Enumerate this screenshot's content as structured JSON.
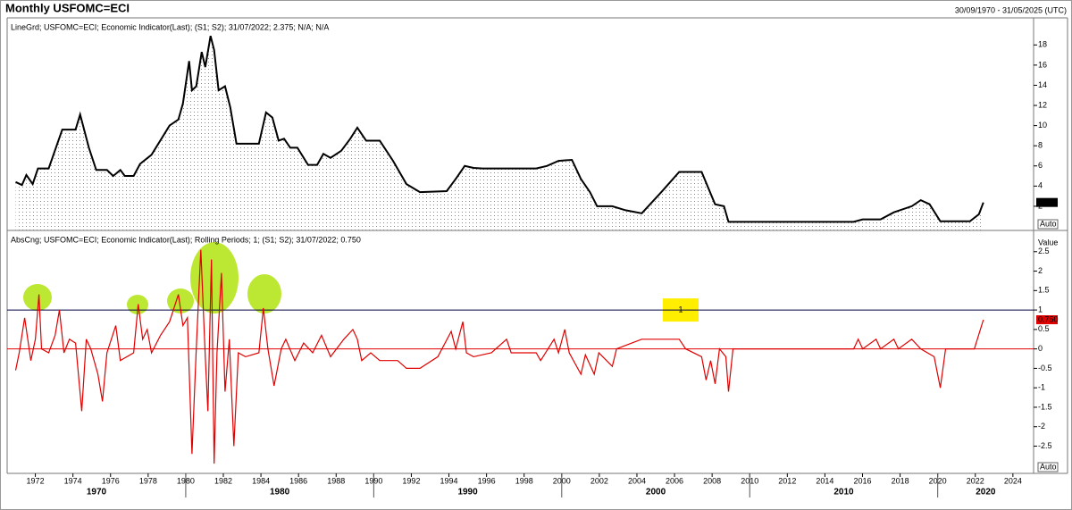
{
  "header": {
    "title": "Monthly USFOMC=ECI",
    "date_range": "30/09/1970 - 31/05/2025 (UTC)"
  },
  "chart_data": [
    {
      "type": "line",
      "legend": "LineGrd; USFOMC=ECI; Economic Indicator(Last); (S1; S2); 31/07/2022; 2.375; N/A; N/A",
      "fill": true,
      "button": "Auto",
      "xlim": [
        1970.5,
        2025.1
      ],
      "ylim": [
        -0.4,
        19.8
      ],
      "yticks": [
        2,
        4,
        6,
        8,
        10,
        12,
        14,
        16,
        18
      ],
      "series": [
        {
          "name": "USFOMC=ECI",
          "color": "#000000",
          "end_label": "2.375",
          "x": [
            1970.95,
            1971.29,
            1971.52,
            1971.86,
            1972.14,
            1972.71,
            1973.43,
            1974.14,
            1974.38,
            1974.85,
            1975.24,
            1975.81,
            1976.14,
            1976.52,
            1976.76,
            1977.23,
            1977.57,
            1978.18,
            1979.14,
            1979.61,
            1979.85,
            1980.18,
            1980.33,
            1980.56,
            1980.85,
            1981.04,
            1981.32,
            1981.51,
            1981.75,
            1982.09,
            1982.37,
            1982.7,
            1983.89,
            1984.27,
            1984.61,
            1984.94,
            1985.23,
            1985.56,
            1985.94,
            1986.51,
            1986.99,
            1987.32,
            1987.7,
            1988.27,
            1988.75,
            1989.13,
            1989.6,
            1990.32,
            1991.03,
            1991.74,
            1992.46,
            1993.88,
            1994.36,
            1994.84,
            1995.31,
            1995.79,
            1998.64,
            1999.21,
            1999.83,
            2000.54,
            2001.02,
            2001.5,
            2001.88,
            2002.69,
            2003.4,
            2004.26,
            2005.3,
            2006.25,
            2007.44,
            2008.16,
            2008.63,
            2008.87,
            2015.53,
            2016.01,
            2016.96,
            2017.67,
            2018.62,
            2019.1,
            2019.57,
            2020.14,
            2021.71,
            2022.19,
            2022.43
          ],
          "values": [
            4.4,
            4.1,
            5.1,
            4.2,
            5.75,
            5.75,
            9.6,
            9.6,
            11.1,
            7.8,
            5.6,
            5.6,
            5.0,
            5.6,
            5.0,
            5.0,
            6.2,
            7.1,
            10.0,
            10.6,
            12.2,
            16.4,
            13.5,
            13.9,
            17.3,
            15.8,
            18.9,
            17.5,
            13.5,
            13.9,
            11.8,
            8.2,
            8.2,
            11.3,
            10.8,
            8.5,
            8.7,
            7.8,
            7.8,
            6.1,
            6.1,
            7.2,
            6.8,
            7.5,
            8.7,
            9.8,
            8.5,
            8.5,
            6.5,
            4.2,
            3.4,
            3.5,
            4.7,
            6.0,
            5.8,
            5.75,
            5.75,
            6.0,
            6.5,
            6.6,
            4.7,
            3.4,
            2.0,
            2.0,
            1.6,
            1.3,
            3.4,
            5.4,
            5.4,
            2.2,
            2.0,
            0.45,
            0.45,
            0.7,
            0.7,
            1.4,
            2.0,
            2.6,
            2.2,
            0.5,
            0.5,
            1.2,
            2.375
          ]
        }
      ]
    },
    {
      "type": "line",
      "legend": "AbsCng; USFOMC=ECI; Economic Indicator(Last); Rolling Periods; 1; (S1; S2); 31/07/2022; 0.750",
      "axis_title": "Value",
      "button": "Auto",
      "xlim": [
        1970.5,
        2025.1
      ],
      "ylim": [
        -3.2,
        3.0
      ],
      "yticks": [
        2.5,
        2,
        1.5,
        1,
        0.5,
        0,
        -0.5,
        -1,
        -1.5,
        -2,
        -2.5
      ],
      "xticks": [
        1972,
        1974,
        1976,
        1978,
        1980,
        1982,
        1984,
        1986,
        1988,
        1990,
        1992,
        1994,
        1996,
        1998,
        2000,
        2002,
        2004,
        2006,
        2008,
        2010,
        2012,
        2014,
        2016,
        2018,
        2020,
        2022,
        2024
      ],
      "decade_ticks": [
        1970,
        1980,
        1990,
        2000,
        2010,
        2020
      ],
      "reference_line": {
        "value": 1,
        "label": "1"
      },
      "series": [
        {
          "name": "AbsCng",
          "color": "#e00000",
          "end_label": "0.750",
          "x": [
            1970.95,
            1971.14,
            1971.43,
            1971.76,
            1972.0,
            1972.19,
            1972.33,
            1972.71,
            1973.05,
            1973.28,
            1973.52,
            1973.81,
            1974.14,
            1974.47,
            1974.71,
            1974.95,
            1975.33,
            1975.57,
            1975.81,
            1976.28,
            1976.52,
            1977.23,
            1977.47,
            1977.71,
            1977.95,
            1978.18,
            1978.66,
            1979.14,
            1979.61,
            1979.85,
            1980.09,
            1980.33,
            1980.56,
            1980.8,
            1981.04,
            1981.18,
            1981.37,
            1981.51,
            1981.66,
            1981.9,
            1982.09,
            1982.32,
            1982.56,
            1982.8,
            1983.18,
            1983.89,
            1984.13,
            1984.37,
            1984.7,
            1985.08,
            1985.32,
            1985.8,
            1986.27,
            1986.75,
            1987.22,
            1987.7,
            1988.41,
            1988.89,
            1989.13,
            1989.36,
            1989.84,
            1990.32,
            1991.27,
            1991.74,
            1992.46,
            1993.41,
            1994.12,
            1994.36,
            1994.74,
            1994.93,
            1995.31,
            1996.26,
            1997.07,
            1997.31,
            1998.64,
            1998.88,
            1999.59,
            1999.83,
            2000.16,
            2000.4,
            2001.02,
            2001.26,
            2001.73,
            2001.97,
            2002.69,
            2002.92,
            2004.26,
            2006.25,
            2006.59,
            2007.44,
            2007.68,
            2007.92,
            2008.16,
            2008.39,
            2008.73,
            2008.87,
            2009.11,
            2015.53,
            2015.77,
            2016.01,
            2016.72,
            2016.96,
            2017.67,
            2017.91,
            2018.62,
            2019.1,
            2019.81,
            2020.14,
            2020.42,
            2021.95,
            2022.43
          ],
          "values": [
            -0.55,
            -0.1,
            0.8,
            -0.3,
            0.25,
            1.4,
            0.0,
            -0.1,
            0.35,
            1.0,
            -0.1,
            0.25,
            0.15,
            -1.6,
            0.25,
            0.0,
            -0.65,
            -1.35,
            -0.1,
            0.6,
            -0.3,
            -0.1,
            1.15,
            0.25,
            0.5,
            -0.1,
            0.35,
            0.7,
            1.4,
            0.6,
            0.8,
            -2.7,
            0.0,
            2.55,
            -0.2,
            -1.6,
            2.3,
            -2.95,
            -0.1,
            1.95,
            -1.1,
            0.25,
            -2.5,
            -0.1,
            -0.2,
            -0.1,
            1.05,
            0.0,
            -0.95,
            0.0,
            0.25,
            -0.3,
            0.15,
            -0.1,
            0.35,
            -0.2,
            0.25,
            0.5,
            0.25,
            -0.3,
            -0.1,
            -0.3,
            -0.3,
            -0.5,
            -0.5,
            -0.2,
            0.45,
            0.0,
            0.7,
            -0.1,
            -0.2,
            -0.1,
            0.25,
            -0.1,
            -0.1,
            -0.3,
            0.25,
            -0.1,
            0.5,
            -0.1,
            -0.65,
            -0.15,
            -0.65,
            -0.1,
            -0.45,
            0.0,
            0.25,
            0.25,
            0.0,
            -0.2,
            -0.8,
            -0.3,
            -0.9,
            0.0,
            -0.2,
            -1.1,
            0.0,
            0.0,
            0.25,
            0.0,
            0.25,
            0.0,
            0.25,
            0.0,
            0.25,
            0.0,
            -0.2,
            -1.0,
            0.0,
            0.0,
            0.75
          ]
        }
      ]
    }
  ]
}
